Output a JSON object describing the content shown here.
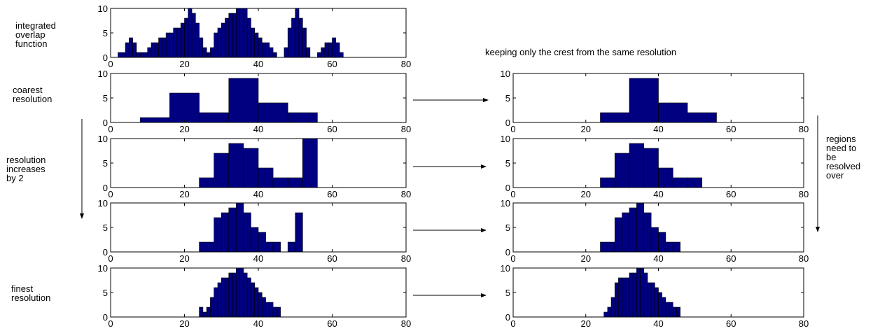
{
  "annotations": {
    "integrated": "integrated\noverlap\nfunction",
    "coarsest": "coarest\nresolution",
    "resolution_increases": "resolution\nincreases\nby 2",
    "finest": "finest\nresolution",
    "keeping_crest": "keeping only the crest from the same resolution",
    "regions": "regions\nneed to\nbe\nresolved\nover"
  },
  "chart_data": [
    {
      "id": "integrated-overlap",
      "type": "bar",
      "bar_color": "#000080",
      "xlim": [
        0,
        80
      ],
      "ylim": [
        0,
        10
      ],
      "xticks": [
        "0",
        "20",
        "40",
        "60",
        "80"
      ],
      "yticks": [
        "0",
        "5",
        "10"
      ],
      "bins": [
        [
          2,
          3,
          1
        ],
        [
          3,
          4,
          1
        ],
        [
          4,
          5,
          3
        ],
        [
          5,
          6,
          4
        ],
        [
          6,
          7,
          3
        ],
        [
          7,
          8,
          1
        ],
        [
          8,
          9,
          1
        ],
        [
          9,
          10,
          1
        ],
        [
          10,
          11,
          2
        ],
        [
          11,
          12,
          3
        ],
        [
          12,
          13,
          3
        ],
        [
          13,
          14,
          4
        ],
        [
          14,
          15,
          4
        ],
        [
          15,
          16,
          5
        ],
        [
          16,
          17,
          5
        ],
        [
          17,
          18,
          6
        ],
        [
          18,
          19,
          6
        ],
        [
          19,
          20,
          7
        ],
        [
          20,
          21,
          8
        ],
        [
          21,
          22,
          10
        ],
        [
          22,
          23,
          9
        ],
        [
          23,
          24,
          7
        ],
        [
          24,
          25,
          4
        ],
        [
          25,
          26,
          2
        ],
        [
          26,
          27,
          1
        ],
        [
          27,
          28,
          2
        ],
        [
          28,
          29,
          5
        ],
        [
          29,
          30,
          6
        ],
        [
          30,
          31,
          7
        ],
        [
          31,
          32,
          8
        ],
        [
          32,
          33,
          9
        ],
        [
          33,
          34,
          9
        ],
        [
          34,
          35,
          10
        ],
        [
          35,
          36,
          10
        ],
        [
          36,
          37,
          10
        ],
        [
          37,
          38,
          8
        ],
        [
          38,
          39,
          6
        ],
        [
          39,
          40,
          5
        ],
        [
          40,
          41,
          4
        ],
        [
          41,
          42,
          3
        ],
        [
          42,
          43,
          3
        ],
        [
          43,
          44,
          2
        ],
        [
          44,
          45,
          1
        ],
        [
          47,
          48,
          2
        ],
        [
          48,
          49,
          6
        ],
        [
          49,
          50,
          8
        ],
        [
          50,
          51,
          10
        ],
        [
          51,
          52,
          8
        ],
        [
          52,
          53,
          6
        ],
        [
          53,
          54,
          2
        ],
        [
          56,
          57,
          1
        ],
        [
          57,
          58,
          2
        ],
        [
          58,
          59,
          3
        ],
        [
          59,
          60,
          3
        ],
        [
          60,
          61,
          4
        ],
        [
          61,
          62,
          3
        ],
        [
          62,
          63,
          1
        ]
      ]
    },
    {
      "id": "coarsest-left",
      "type": "bar",
      "bar_color": "#000080",
      "xlim": [
        0,
        80
      ],
      "ylim": [
        0,
        10
      ],
      "xticks": [
        "0",
        "20",
        "40",
        "60",
        "80"
      ],
      "yticks": [
        "0",
        "5",
        "10"
      ],
      "bins": [
        [
          8,
          16,
          1
        ],
        [
          16,
          24,
          6
        ],
        [
          24,
          32,
          2
        ],
        [
          32,
          40,
          9
        ],
        [
          40,
          48,
          4
        ],
        [
          48,
          56,
          2
        ]
      ]
    },
    {
      "id": "res2-left",
      "type": "bar",
      "bar_color": "#000080",
      "xlim": [
        0,
        80
      ],
      "ylim": [
        0,
        10
      ],
      "xticks": [
        "0",
        "20",
        "40",
        "60",
        "80"
      ],
      "yticks": [
        "0",
        "5",
        "10"
      ],
      "bins": [
        [
          24,
          28,
          2
        ],
        [
          28,
          32,
          7
        ],
        [
          32,
          36,
          9
        ],
        [
          36,
          40,
          8
        ],
        [
          40,
          44,
          4
        ],
        [
          44,
          48,
          2
        ],
        [
          48,
          52,
          2
        ],
        [
          52,
          56,
          10
        ]
      ]
    },
    {
      "id": "res3-left",
      "type": "bar",
      "bar_color": "#000080",
      "xlim": [
        0,
        80
      ],
      "ylim": [
        0,
        10
      ],
      "xticks": [
        "0",
        "20",
        "40",
        "60",
        "80"
      ],
      "yticks": [
        "0",
        "5",
        "10"
      ],
      "bins": [
        [
          24,
          28,
          2
        ],
        [
          28,
          30,
          7
        ],
        [
          30,
          32,
          8
        ],
        [
          32,
          34,
          9
        ],
        [
          34,
          36,
          10
        ],
        [
          36,
          38,
          8
        ],
        [
          38,
          40,
          5
        ],
        [
          40,
          42,
          4
        ],
        [
          42,
          44,
          2
        ],
        [
          44,
          46,
          2
        ],
        [
          48,
          50,
          2
        ],
        [
          50,
          52,
          8
        ]
      ]
    },
    {
      "id": "finest-left",
      "type": "bar",
      "bar_color": "#000080",
      "xlim": [
        0,
        80
      ],
      "ylim": [
        0,
        10
      ],
      "xticks": [
        "0",
        "20",
        "40",
        "60",
        "80"
      ],
      "yticks": [
        "0",
        "5",
        "10"
      ],
      "bins": [
        [
          24,
          25,
          2
        ],
        [
          25,
          26,
          1
        ],
        [
          26,
          27,
          2
        ],
        [
          27,
          28,
          4
        ],
        [
          28,
          29,
          6
        ],
        [
          29,
          30,
          7
        ],
        [
          30,
          31,
          8
        ],
        [
          31,
          32,
          8
        ],
        [
          32,
          33,
          9
        ],
        [
          33,
          34,
          9
        ],
        [
          34,
          35,
          10
        ],
        [
          35,
          36,
          10
        ],
        [
          36,
          37,
          9
        ],
        [
          37,
          38,
          8
        ],
        [
          38,
          39,
          7
        ],
        [
          39,
          40,
          6
        ],
        [
          40,
          41,
          5
        ],
        [
          41,
          42,
          4
        ],
        [
          42,
          43,
          3
        ],
        [
          43,
          44,
          3
        ],
        [
          44,
          45,
          2
        ],
        [
          45,
          46,
          2
        ]
      ]
    },
    {
      "id": "coarsest-right",
      "type": "bar",
      "bar_color": "#000080",
      "xlim": [
        0,
        80
      ],
      "ylim": [
        0,
        10
      ],
      "xticks": [
        "0",
        "20",
        "40",
        "60",
        "80"
      ],
      "yticks": [
        "0",
        "5",
        "10"
      ],
      "bins": [
        [
          24,
          32,
          2
        ],
        [
          32,
          40,
          9
        ],
        [
          40,
          48,
          4
        ],
        [
          48,
          56,
          2
        ]
      ]
    },
    {
      "id": "res2-right",
      "type": "bar",
      "bar_color": "#000080",
      "xlim": [
        0,
        80
      ],
      "ylim": [
        0,
        10
      ],
      "xticks": [
        "0",
        "20",
        "40",
        "60",
        "80"
      ],
      "yticks": [
        "0",
        "5",
        "10"
      ],
      "bins": [
        [
          24,
          28,
          2
        ],
        [
          28,
          32,
          7
        ],
        [
          32,
          36,
          9
        ],
        [
          36,
          40,
          8
        ],
        [
          40,
          44,
          4
        ],
        [
          44,
          48,
          2
        ],
        [
          48,
          52,
          2
        ]
      ]
    },
    {
      "id": "res3-right",
      "type": "bar",
      "bar_color": "#000080",
      "xlim": [
        0,
        80
      ],
      "ylim": [
        0,
        10
      ],
      "xticks": [
        "0",
        "20",
        "40",
        "60",
        "80"
      ],
      "yticks": [
        "0",
        "5",
        "10"
      ],
      "bins": [
        [
          24,
          28,
          2
        ],
        [
          28,
          30,
          7
        ],
        [
          30,
          32,
          8
        ],
        [
          32,
          34,
          9
        ],
        [
          34,
          36,
          10
        ],
        [
          36,
          38,
          8
        ],
        [
          38,
          40,
          5
        ],
        [
          40,
          42,
          4
        ],
        [
          42,
          44,
          2
        ],
        [
          44,
          46,
          2
        ]
      ]
    },
    {
      "id": "finest-right",
      "type": "bar",
      "bar_color": "#000080",
      "xlim": [
        0,
        80
      ],
      "ylim": [
        0,
        10
      ],
      "xticks": [
        "0",
        "20",
        "40",
        "60",
        "80"
      ],
      "yticks": [
        "0",
        "5",
        "10"
      ],
      "bins": [
        [
          25,
          26,
          1
        ],
        [
          26,
          27,
          2
        ],
        [
          27,
          28,
          4
        ],
        [
          28,
          29,
          7
        ],
        [
          29,
          30,
          8
        ],
        [
          30,
          31,
          8
        ],
        [
          31,
          32,
          8
        ],
        [
          32,
          33,
          9
        ],
        [
          33,
          34,
          9
        ],
        [
          34,
          35,
          10
        ],
        [
          35,
          36,
          10
        ],
        [
          36,
          37,
          9
        ],
        [
          37,
          38,
          7
        ],
        [
          38,
          39,
          7
        ],
        [
          39,
          40,
          6
        ],
        [
          40,
          41,
          5
        ],
        [
          41,
          42,
          4
        ],
        [
          42,
          43,
          3
        ],
        [
          43,
          44,
          3
        ],
        [
          44,
          45,
          2
        ],
        [
          45,
          46,
          2
        ]
      ]
    }
  ]
}
